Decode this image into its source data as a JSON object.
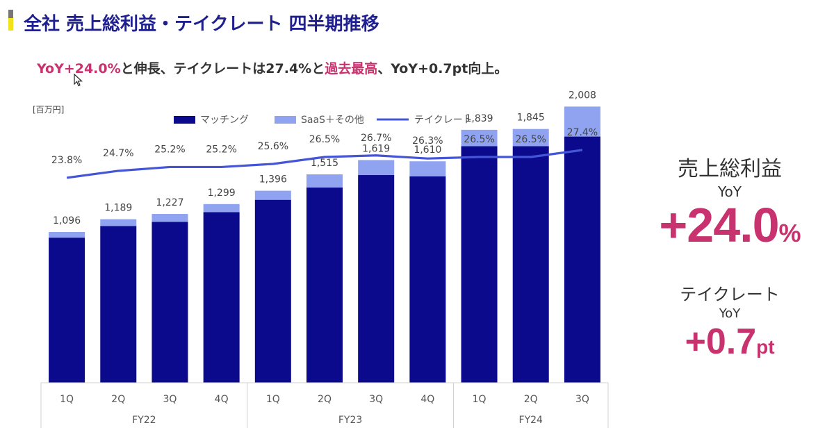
{
  "header": {
    "title": "全社 売上総利益・テイクレート 四半期推移"
  },
  "subtitle": {
    "part1": "YoY+24.0%",
    "part2": "と伸長、テイクレートは27.4%と",
    "part3": "過去最高",
    "part4": "、YoY+0.7pt向上。"
  },
  "colors": {
    "matching": "#0b0a8c",
    "saas": "#8fa3f0",
    "takerate": "#4455d6",
    "accent": "#c8326e"
  },
  "chart_data": {
    "type": "bar",
    "unit_label": "[百万円]",
    "legend": [
      {
        "name": "マッチング",
        "kind": "box"
      },
      {
        "name": "SaaS＋その他",
        "kind": "box"
      },
      {
        "name": "テイクレート",
        "kind": "line"
      }
    ],
    "categories": [
      "1Q",
      "2Q",
      "3Q",
      "4Q",
      "1Q",
      "2Q",
      "3Q",
      "4Q",
      "1Q",
      "2Q",
      "3Q"
    ],
    "groups": [
      {
        "label": "FY22",
        "count": 4
      },
      {
        "label": "FY23",
        "count": 4
      },
      {
        "label": "FY24",
        "count": 3
      }
    ],
    "series": [
      {
        "name": "マッチング",
        "values": [
          1055,
          1140,
          1170,
          1240,
          1330,
          1420,
          1510,
          1500,
          1720,
          1720,
          1790
        ]
      },
      {
        "name": "SaaS＋その他",
        "values": [
          41,
          49,
          57,
          59,
          66,
          95,
          109,
          110,
          119,
          125,
          218
        ]
      }
    ],
    "totals": [
      1096,
      1189,
      1227,
      1299,
      1396,
      1515,
      1619,
      1610,
      1839,
      1845,
      2008
    ],
    "total_labels": [
      "1,096",
      "1,189",
      "1,227",
      "1,299",
      "1,396",
      "1,515",
      "1,619",
      "1,610",
      "1,839",
      "1,845",
      "2,008"
    ],
    "take_rate": [
      23.8,
      24.7,
      25.2,
      25.2,
      25.6,
      26.5,
      26.7,
      26.3,
      26.5,
      26.5,
      27.4
    ],
    "take_rate_labels": [
      "23.8%",
      "24.7%",
      "25.2%",
      "25.2%",
      "25.6%",
      "26.5%",
      "26.7%",
      "26.3%",
      "26.5%",
      "26.5%",
      "27.4%"
    ],
    "ylim": [
      0,
      2200
    ],
    "take_rate_ylim": [
      20,
      28
    ]
  },
  "kpis": {
    "gross_profit": {
      "label": "売上総利益",
      "sub": "YoY",
      "value": "+24.0",
      "unit": "%"
    },
    "take_rate": {
      "label": "テイクレート",
      "sub": "YoY",
      "value": "+0.7",
      "unit": "pt"
    }
  }
}
